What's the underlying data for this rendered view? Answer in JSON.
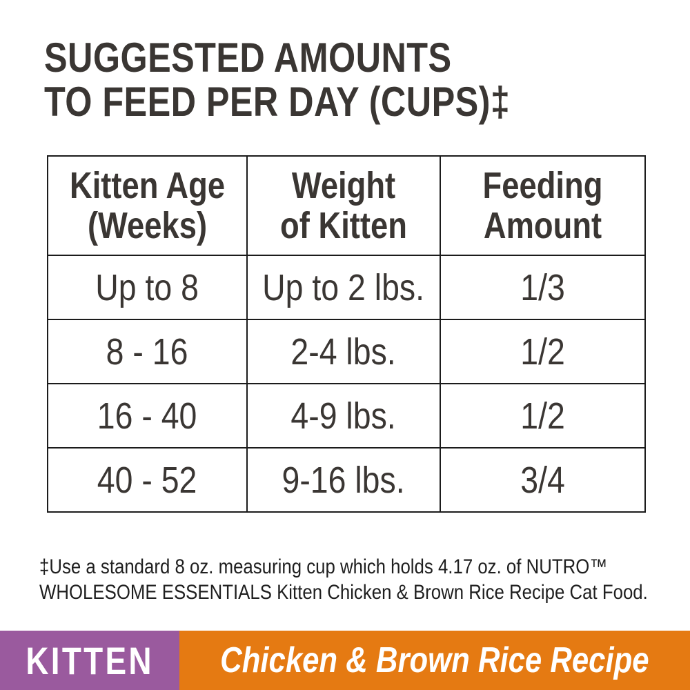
{
  "colors": {
    "text_dark": "#3a3633",
    "table_border": "#1b1b1b",
    "footer_purple": "#9a5a9e",
    "footer_orange": "#e57a12",
    "footer_text": "#ffffff",
    "background": "#ffffff"
  },
  "title": {
    "line1": "SUGGESTED AMOUNTS",
    "line2": "TO FEED PER DAY (CUPS)‡"
  },
  "table": {
    "headers": [
      {
        "line1": "Kitten Age",
        "line2": "(Weeks)"
      },
      {
        "line1": "Weight",
        "line2": "of Kitten"
      },
      {
        "line1": "Feeding",
        "line2": "Amount"
      }
    ],
    "rows": [
      [
        "Up to 8",
        "Up to 2 lbs.",
        "1/3"
      ],
      [
        "8 - 16",
        "2-4 lbs.",
        "1/2"
      ],
      [
        "16 - 40",
        "4-9 lbs.",
        "1/2"
      ],
      [
        "40 - 52",
        "9-16 lbs.",
        "3/4"
      ]
    ]
  },
  "footnote": {
    "line1": "‡Use a standard 8 oz. measuring cup which holds 4.17 oz. of NUTRO™",
    "line2": "WHOLESOME ESSENTIALS Kitten Chicken & Brown Rice Recipe Cat Food."
  },
  "footer": {
    "category": "KITTEN",
    "recipe": "Chicken & Brown Rice Recipe"
  }
}
